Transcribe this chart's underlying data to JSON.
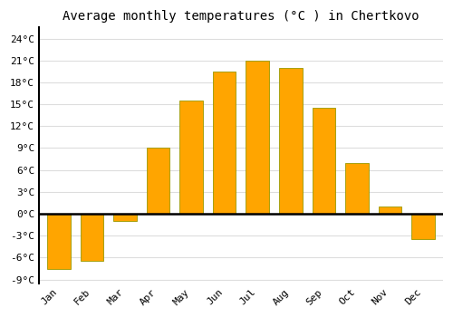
{
  "months": [
    "Jan",
    "Feb",
    "Mar",
    "Apr",
    "May",
    "Jun",
    "Jul",
    "Aug",
    "Sep",
    "Oct",
    "Nov",
    "Dec"
  ],
  "temperatures": [
    -7.5,
    -6.5,
    -1.0,
    9.0,
    15.5,
    19.5,
    21.0,
    20.0,
    14.5,
    7.0,
    1.0,
    -3.5
  ],
  "bar_color": "#FFA500",
  "bar_edge_color": "#999900",
  "title": "Average monthly temperatures (°C ) in Chertkovo",
  "ylim": [
    -9.5,
    25.5
  ],
  "yticks": [
    -9,
    -6,
    -3,
    0,
    3,
    6,
    9,
    12,
    15,
    18,
    21,
    24
  ],
  "background_color": "#ffffff",
  "plot_bg_color": "#ffffff",
  "grid_color": "#dddddd",
  "title_fontsize": 10,
  "tick_fontsize": 8,
  "font_family": "monospace"
}
